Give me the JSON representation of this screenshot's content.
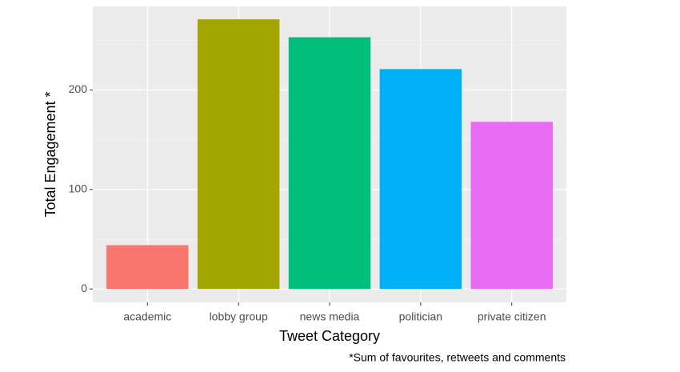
{
  "chart_data": {
    "type": "bar",
    "x_label": "Tweet Category",
    "y_label": "Total Engagement *",
    "caption": "*Sum of favourites, retweets and comments",
    "categories": [
      "academic",
      "lobby group",
      "news media",
      "politician",
      "private citizen"
    ],
    "values": [
      44,
      271,
      253,
      221,
      168
    ],
    "colors": [
      "#F8766D",
      "#A3A500",
      "#00BF7D",
      "#00B0F6",
      "#E76BF3"
    ],
    "ylim": [
      -13.5,
      284
    ],
    "yticks": [
      0,
      100,
      200
    ],
    "minor_yticks": [
      50,
      150,
      250
    ],
    "grid": true
  }
}
